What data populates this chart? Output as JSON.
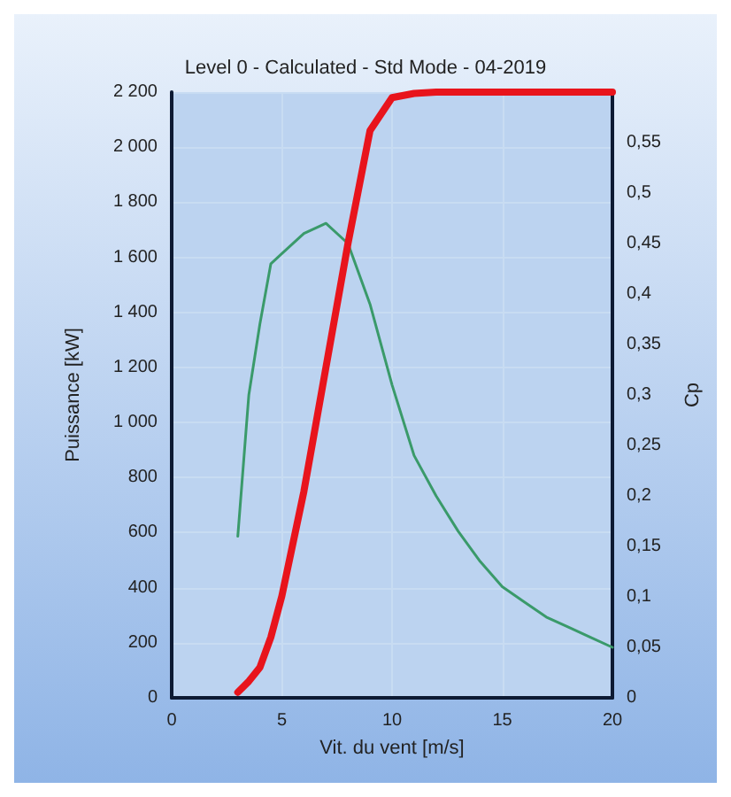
{
  "chart_data": {
    "type": "line",
    "title": "Level 0 - Calculated - Std Mode - 04-2019",
    "xlabel": "Vit. du vent [m/s]",
    "ylabel": "Puissance [kW]",
    "y2label": "Cp",
    "x": [
      3,
      3.5,
      4,
      4.5,
      5,
      6,
      7,
      8,
      9,
      10,
      11,
      12,
      13,
      14,
      15,
      16,
      17,
      18,
      19,
      20
    ],
    "series": [
      {
        "color": "#e8141c",
        "values": [
          20,
          60,
          110,
          220,
          370,
          750,
          1200,
          1650,
          2060,
          2180,
          2195,
          2200,
          2200,
          2200,
          2200,
          2200,
          2200,
          2200,
          2200,
          2200
        ]
      },
      {
        "color": "#3a9a6a",
        "axis": "y2",
        "values": [
          0.16,
          0.3,
          0.37,
          0.43,
          0.44,
          0.46,
          0.47,
          0.45,
          0.39,
          0.31,
          0.24,
          0.2,
          0.165,
          0.135,
          0.11,
          0.095,
          0.08,
          0.07,
          0.06,
          0.05
        ]
      }
    ],
    "xlim": [
      0,
      20
    ],
    "xticks": [
      0,
      5,
      10,
      15,
      20
    ],
    "ylim": [
      0,
      2200
    ],
    "yticks": [
      0,
      200,
      400,
      600,
      800,
      {
        "value": 1000,
        "label": "1 000"
      },
      {
        "value": 1200,
        "label": "1 200"
      },
      {
        "value": 1400,
        "label": "1 400"
      },
      {
        "value": 1600,
        "label": "1 600"
      },
      {
        "value": 1800,
        "label": "1 800"
      },
      {
        "value": 2000,
        "label": "2 000"
      },
      {
        "value": 2200,
        "label": "2 200"
      }
    ],
    "y2lim": [
      0,
      0.6
    ],
    "y2ticks": [
      0,
      {
        "value": 0.05,
        "label": "0,05"
      },
      {
        "value": 0.1,
        "label": "0,1"
      },
      {
        "value": 0.15,
        "label": "0,15"
      },
      {
        "value": 0.2,
        "label": "0,2"
      },
      {
        "value": 0.25,
        "label": "0,25"
      },
      {
        "value": 0.3,
        "label": "0,3"
      },
      {
        "value": 0.35,
        "label": "0,35"
      },
      {
        "value": 0.4,
        "label": "0,4"
      },
      {
        "value": 0.45,
        "label": "0,45"
      },
      {
        "value": 0.5,
        "label": "0,5"
      },
      {
        "value": 0.55,
        "label": "0,55"
      }
    ],
    "grid": true,
    "marker": "none",
    "line_style": "solid"
  }
}
